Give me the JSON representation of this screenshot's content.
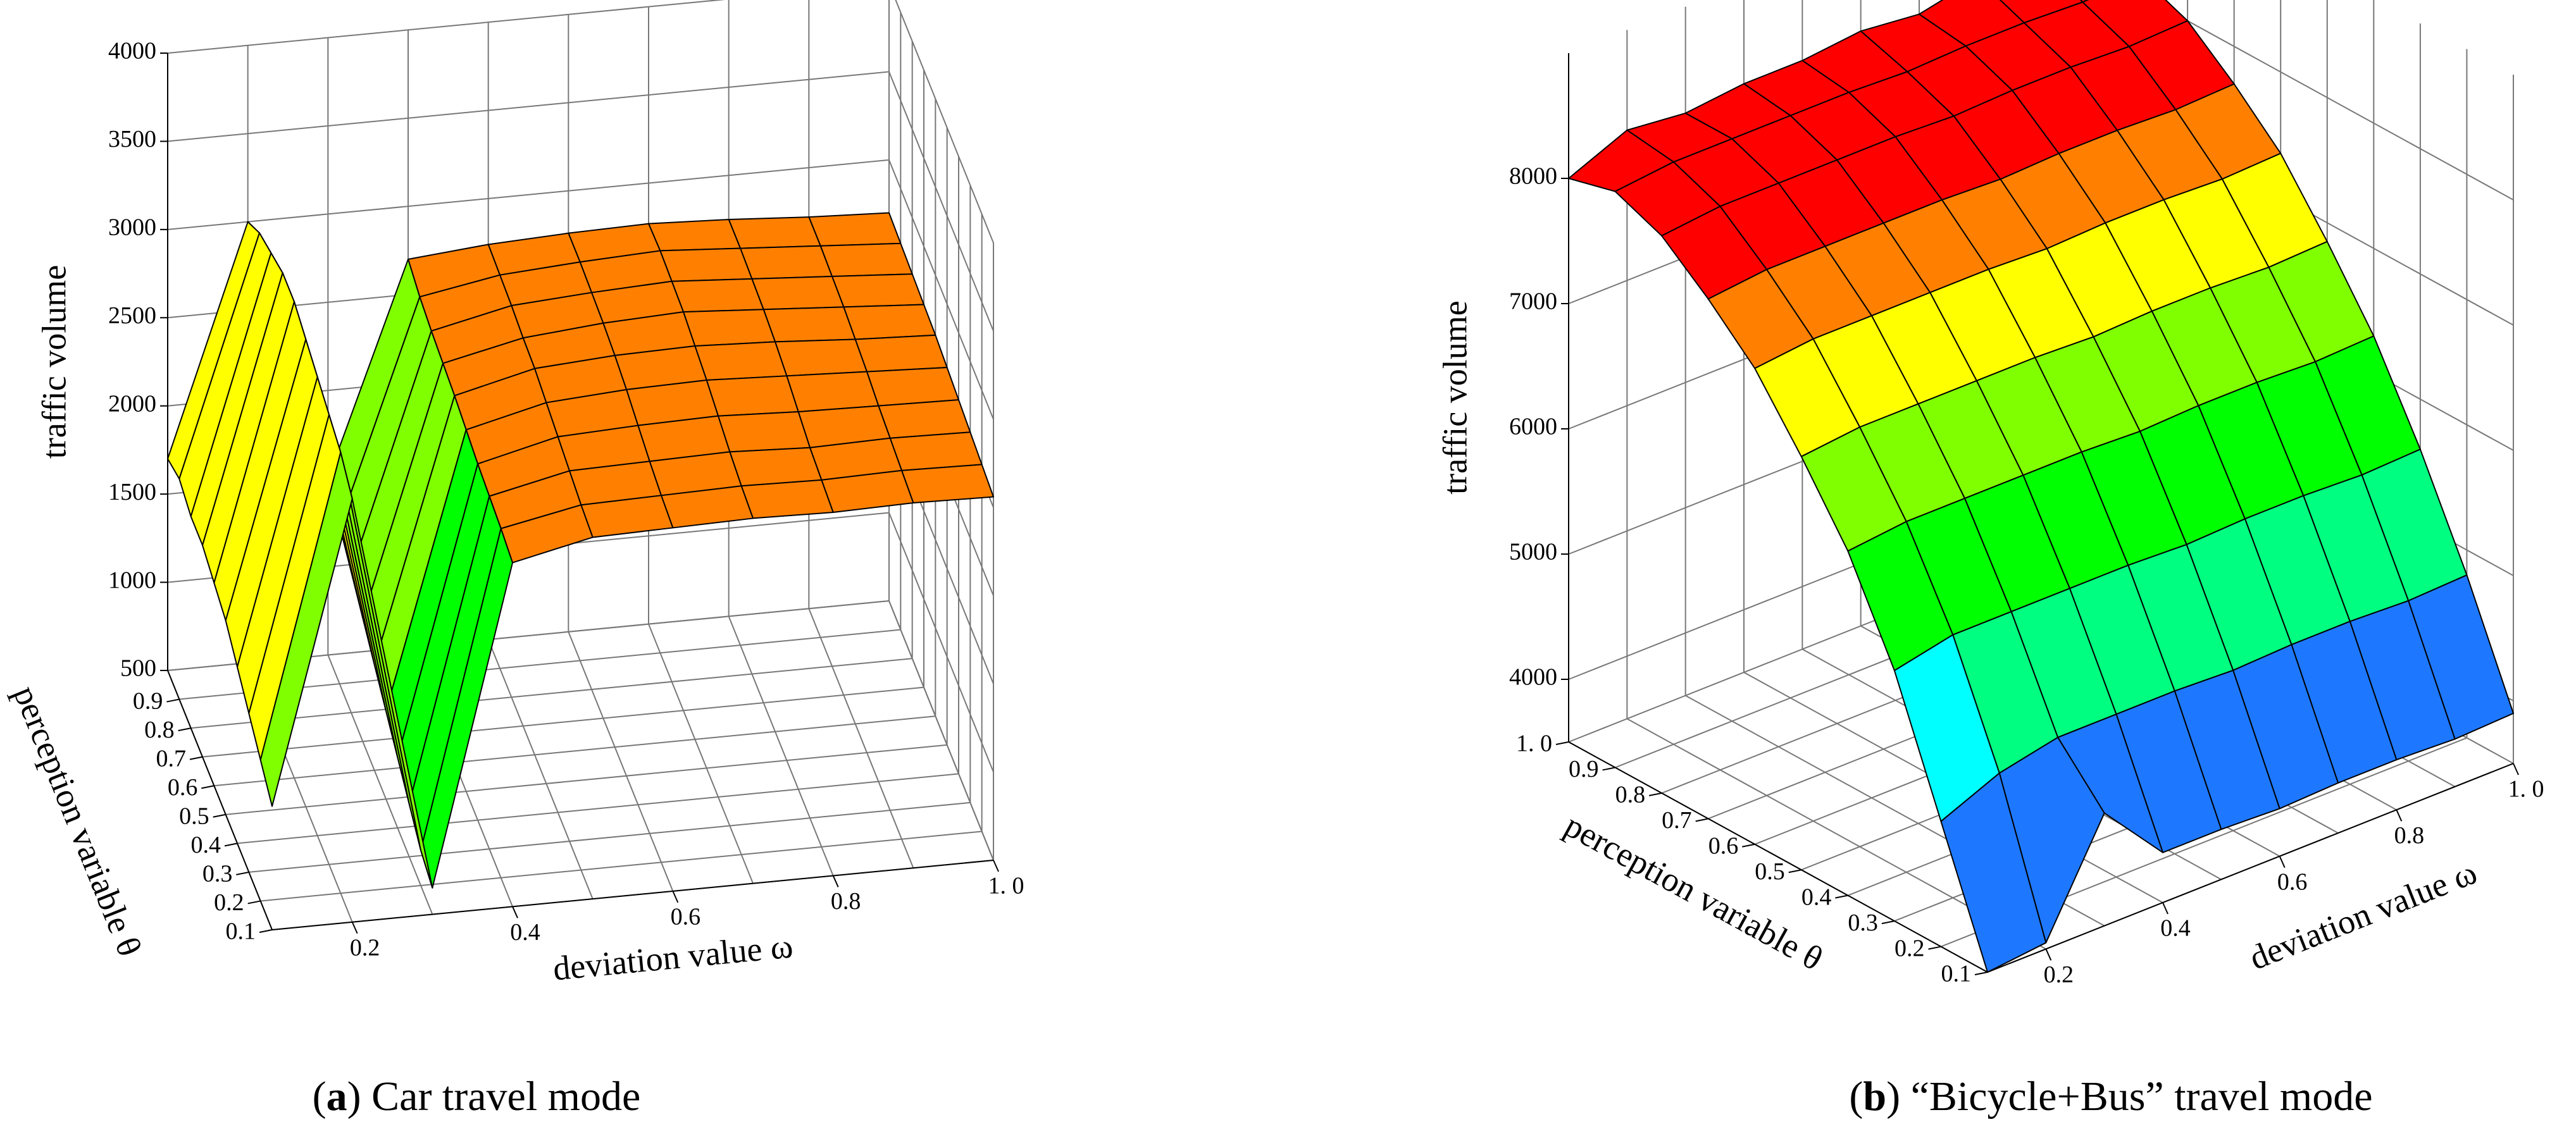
{
  "chart_data": [
    {
      "type": "surface",
      "caption": [
        "(",
        "a",
        ") Car travel mode"
      ],
      "xlabel": "deviation value ω",
      "ylabel": "perception variable θ",
      "zlabel": "traffic volume",
      "x": [
        0.1,
        0.2,
        0.3,
        0.4,
        0.5,
        0.6,
        0.7,
        0.8,
        0.9,
        1.0
      ],
      "y": [
        0.1,
        0.2,
        0.3,
        0.4,
        0.5,
        0.6,
        0.7,
        0.8,
        0.9,
        1.0
      ],
      "z": [
        [
          1200,
          2900,
          650,
          2450,
          2550,
          2560,
          2570,
          2560,
          2570,
          2560
        ],
        [
          1300,
          3000,
          700,
          2480,
          2570,
          2580,
          2590,
          2580,
          2590,
          2580
        ],
        [
          1400,
          3050,
          800,
          2500,
          2600,
          2610,
          2620,
          2600,
          2610,
          2600
        ],
        [
          1500,
          3100,
          900,
          2520,
          2630,
          2650,
          2660,
          2640,
          2630,
          2620
        ],
        [
          1600,
          3150,
          1000,
          2550,
          2660,
          2690,
          2700,
          2680,
          2660,
          2640
        ],
        [
          1650,
          3200,
          1100,
          2580,
          2690,
          2720,
          2730,
          2710,
          2680,
          2660
        ],
        [
          1700,
          3200,
          1200,
          2600,
          2700,
          2740,
          2760,
          2730,
          2700,
          2670
        ],
        [
          1700,
          3150,
          1300,
          2620,
          2720,
          2750,
          2770,
          2740,
          2710,
          2680
        ],
        [
          1750,
          3100,
          1400,
          2650,
          2730,
          2760,
          2780,
          2750,
          2720,
          2690
        ],
        [
          1700,
          3000,
          1500,
          2700,
          2740,
          2760,
          2770,
          2750,
          2720,
          2700
        ]
      ],
      "xlim": [
        0.1,
        1.0
      ],
      "ylim": [
        0.1,
        1.0
      ],
      "zlim": [
        500,
        4000
      ],
      "xticks": [
        0.2,
        0.4,
        0.6,
        0.8,
        {
          "value": 1.0,
          "label": "1. 0"
        }
      ],
      "yticks": [
        0.1,
        0.2,
        0.3,
        0.4,
        0.5,
        0.6,
        0.7,
        0.8,
        0.9
      ],
      "zticks": [
        500,
        1000,
        1500,
        2000,
        2500,
        3000,
        3500,
        4000
      ],
      "colormap": [
        "#00ffff",
        "#00ff80",
        "#00ff00",
        "#80ff00",
        "#ffff00",
        "#ff8000",
        "#ff0000"
      ],
      "grid": true
    },
    {
      "type": "surface",
      "caption": [
        "(",
        "b",
        ") “Bicycle+Bus” travel mode"
      ],
      "xlabel": "deviation value ω",
      "ylabel": "perception variable θ",
      "zlabel": "traffic volume",
      "x": [
        0.1,
        0.2,
        0.3,
        0.4,
        0.5,
        0.6,
        0.7,
        0.8,
        0.9,
        1.0
      ],
      "y": [
        0.1,
        0.2,
        0.3,
        0.4,
        0.5,
        0.6,
        0.7,
        0.8,
        0.9,
        1.0
      ],
      "z": [
        [
          3500,
          3550,
          4400,
          3900,
          3900,
          3880,
          3900,
          3900,
          3880,
          3900
        ],
        [
          4500,
          4700,
          4800,
          4800,
          4800,
          4780,
          4800,
          4800,
          4780,
          4800
        ],
        [
          5500,
          5600,
          5600,
          5600,
          5600,
          5580,
          5600,
          5600,
          5580,
          5600
        ],
        [
          6250,
          6300,
          6300,
          6300,
          6300,
          6280,
          6300,
          6300,
          6280,
          6300
        ],
        [
          6800,
          6850,
          6850,
          6850,
          6850,
          6830,
          6850,
          6850,
          6830,
          6850
        ],
        [
          7300,
          7350,
          7350,
          7350,
          7350,
          7330,
          7350,
          7350,
          7330,
          7350
        ],
        [
          7650,
          7700,
          7700,
          7700,
          7700,
          7680,
          7700,
          7700,
          7680,
          7700
        ],
        [
          7950,
          8000,
          8000,
          8000,
          8000,
          7980,
          8000,
          8000,
          7980,
          8000
        ],
        [
          8100,
          8150,
          8150,
          8150,
          8150,
          8130,
          8150,
          8150,
          8130,
          8150
        ],
        [
          8000,
          8200,
          8150,
          8200,
          8200,
          8250,
          8200,
          8300,
          8350,
          8200
        ]
      ],
      "xlim": [
        0.1,
        1.0
      ],
      "ylim": [
        0.1,
        1.0
      ],
      "zlim": [
        3500,
        9000
      ],
      "xticks": [
        0.2,
        0.4,
        0.6,
        0.8,
        {
          "value": 1.0,
          "label": "1. 0"
        }
      ],
      "yticks": [
        0.1,
        0.2,
        0.3,
        0.4,
        0.5,
        0.6,
        0.7,
        0.8,
        0.9,
        {
          "value": 1.0,
          "label": "1. 0"
        }
      ],
      "zticks": [
        4000,
        5000,
        6000,
        7000,
        8000
      ],
      "colormap": [
        "#0000ff",
        "#1e78ff",
        "#00ffff",
        "#00ff80",
        "#00ff00",
        "#80ff00",
        "#ffff00",
        "#ff8000",
        "#ff0000"
      ],
      "grid": true
    }
  ]
}
